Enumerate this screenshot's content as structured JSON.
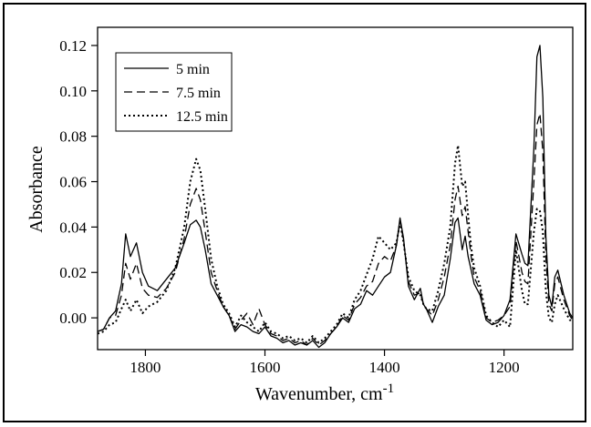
{
  "chart_data": {
    "type": "line",
    "xlabel": "Wavenumber, cm",
    "xlabel_superscript": "-1",
    "ylabel": "Absorbance",
    "xlim": [
      1880,
      1085
    ],
    "ylim": [
      -0.014,
      0.128
    ],
    "x_reversed": true,
    "grid": false,
    "legend_position": "top-left",
    "xticks": [
      1800,
      1600,
      1400,
      1200
    ],
    "xtick_labels": [
      "1800",
      "1600",
      "1400",
      "1200"
    ],
    "yticks": [
      0.0,
      0.02,
      0.04,
      0.06,
      0.08,
      0.1,
      0.12
    ],
    "ytick_labels": [
      "0.00",
      "0.02",
      "0.04",
      "0.06",
      "0.08",
      "0.10",
      "0.12"
    ],
    "series": [
      {
        "name": "5 min",
        "style": "solid",
        "x": [
          1880,
          1870,
          1860,
          1850,
          1840,
          1833,
          1825,
          1815,
          1805,
          1795,
          1780,
          1765,
          1750,
          1735,
          1725,
          1715,
          1708,
          1700,
          1690,
          1680,
          1670,
          1660,
          1650,
          1640,
          1630,
          1620,
          1610,
          1600,
          1590,
          1580,
          1570,
          1560,
          1550,
          1540,
          1530,
          1520,
          1510,
          1500,
          1490,
          1480,
          1470,
          1460,
          1450,
          1440,
          1430,
          1420,
          1410,
          1400,
          1390,
          1380,
          1374,
          1368,
          1360,
          1350,
          1340,
          1335,
          1330,
          1320,
          1310,
          1300,
          1290,
          1282,
          1277,
          1270,
          1265,
          1260,
          1255,
          1250,
          1240,
          1230,
          1220,
          1210,
          1200,
          1190,
          1180,
          1170,
          1165,
          1160,
          1150,
          1145,
          1140,
          1135,
          1130,
          1125,
          1120,
          1115,
          1110,
          1100,
          1090,
          1085
        ],
        "y": [
          -0.006,
          -0.005,
          0.0,
          0.003,
          0.015,
          0.037,
          0.027,
          0.033,
          0.02,
          0.014,
          0.012,
          0.017,
          0.022,
          0.033,
          0.041,
          0.043,
          0.04,
          0.03,
          0.015,
          0.01,
          0.005,
          0.001,
          -0.006,
          -0.003,
          -0.004,
          -0.006,
          -0.007,
          -0.004,
          -0.008,
          -0.009,
          -0.011,
          -0.01,
          -0.012,
          -0.011,
          -0.012,
          -0.01,
          -0.013,
          -0.011,
          -0.007,
          -0.004,
          0.0,
          -0.002,
          0.004,
          0.006,
          0.012,
          0.01,
          0.014,
          0.018,
          0.02,
          0.032,
          0.044,
          0.035,
          0.014,
          0.008,
          0.013,
          0.006,
          0.004,
          -0.002,
          0.005,
          0.01,
          0.026,
          0.042,
          0.044,
          0.03,
          0.036,
          0.027,
          0.021,
          0.015,
          0.01,
          -0.001,
          -0.003,
          -0.002,
          0.001,
          0.008,
          0.037,
          0.028,
          0.024,
          0.023,
          0.075,
          0.115,
          0.12,
          0.097,
          0.036,
          0.01,
          0.005,
          0.018,
          0.021,
          0.01,
          0.002,
          0.0
        ]
      },
      {
        "name": "7.5 min",
        "style": "dashed",
        "x": [
          1880,
          1870,
          1860,
          1850,
          1840,
          1833,
          1825,
          1815,
          1805,
          1795,
          1780,
          1765,
          1750,
          1735,
          1725,
          1715,
          1708,
          1700,
          1690,
          1680,
          1670,
          1660,
          1650,
          1640,
          1630,
          1620,
          1610,
          1600,
          1590,
          1580,
          1570,
          1560,
          1550,
          1540,
          1530,
          1520,
          1510,
          1500,
          1490,
          1480,
          1470,
          1460,
          1450,
          1440,
          1430,
          1420,
          1410,
          1400,
          1390,
          1380,
          1374,
          1368,
          1360,
          1350,
          1340,
          1335,
          1330,
          1320,
          1310,
          1300,
          1290,
          1282,
          1277,
          1270,
          1265,
          1260,
          1255,
          1250,
          1240,
          1230,
          1220,
          1210,
          1200,
          1190,
          1180,
          1170,
          1165,
          1160,
          1150,
          1145,
          1140,
          1135,
          1130,
          1125,
          1120,
          1115,
          1110,
          1100,
          1090,
          1085
        ],
        "y": [
          -0.006,
          -0.005,
          0.0,
          0.001,
          0.01,
          0.024,
          0.017,
          0.024,
          0.013,
          0.01,
          0.009,
          0.013,
          0.02,
          0.035,
          0.05,
          0.057,
          0.052,
          0.038,
          0.02,
          0.012,
          0.005,
          0.001,
          -0.005,
          -0.001,
          0.002,
          -0.003,
          0.004,
          -0.003,
          -0.007,
          -0.008,
          -0.01,
          -0.009,
          -0.011,
          -0.01,
          -0.012,
          -0.009,
          -0.012,
          -0.01,
          -0.007,
          -0.004,
          0.001,
          -0.001,
          0.006,
          0.009,
          0.014,
          0.016,
          0.024,
          0.027,
          0.025,
          0.032,
          0.043,
          0.034,
          0.016,
          0.01,
          0.011,
          0.006,
          0.004,
          0.001,
          0.008,
          0.018,
          0.032,
          0.052,
          0.058,
          0.045,
          0.049,
          0.038,
          0.027,
          0.018,
          0.012,
          0.0,
          -0.002,
          -0.001,
          0.001,
          0.005,
          0.034,
          0.02,
          0.016,
          0.015,
          0.06,
          0.085,
          0.09,
          0.073,
          0.027,
          0.006,
          0.003,
          0.015,
          0.018,
          0.008,
          0.001,
          -0.001
        ]
      },
      {
        "name": "12.5 min",
        "style": "dotted",
        "x": [
          1880,
          1870,
          1860,
          1850,
          1840,
          1833,
          1825,
          1815,
          1805,
          1795,
          1780,
          1765,
          1750,
          1735,
          1725,
          1715,
          1708,
          1700,
          1690,
          1680,
          1670,
          1660,
          1650,
          1640,
          1630,
          1620,
          1610,
          1600,
          1590,
          1580,
          1570,
          1560,
          1550,
          1540,
          1530,
          1520,
          1510,
          1500,
          1490,
          1480,
          1470,
          1460,
          1450,
          1440,
          1430,
          1420,
          1410,
          1400,
          1390,
          1380,
          1374,
          1368,
          1360,
          1350,
          1340,
          1335,
          1330,
          1320,
          1310,
          1300,
          1290,
          1282,
          1277,
          1270,
          1265,
          1260,
          1255,
          1250,
          1240,
          1230,
          1220,
          1210,
          1200,
          1190,
          1180,
          1170,
          1165,
          1160,
          1150,
          1145,
          1140,
          1135,
          1130,
          1125,
          1120,
          1115,
          1110,
          1100,
          1090,
          1085
        ],
        "y": [
          -0.007,
          -0.006,
          -0.003,
          -0.002,
          0.004,
          0.008,
          0.003,
          0.008,
          0.002,
          0.005,
          0.007,
          0.012,
          0.022,
          0.04,
          0.06,
          0.07,
          0.065,
          0.048,
          0.026,
          0.014,
          0.006,
          0.002,
          -0.004,
          0.001,
          -0.002,
          -0.004,
          -0.006,
          -0.002,
          -0.006,
          -0.007,
          -0.009,
          -0.008,
          -0.01,
          -0.009,
          -0.011,
          -0.008,
          -0.011,
          -0.009,
          -0.006,
          -0.003,
          0.002,
          0.0,
          0.008,
          0.012,
          0.019,
          0.026,
          0.036,
          0.033,
          0.03,
          0.033,
          0.042,
          0.033,
          0.018,
          0.012,
          0.01,
          0.006,
          0.004,
          0.003,
          0.012,
          0.024,
          0.04,
          0.068,
          0.076,
          0.058,
          0.06,
          0.045,
          0.031,
          0.022,
          0.014,
          0.001,
          -0.002,
          -0.004,
          -0.001,
          -0.004,
          0.03,
          0.012,
          0.006,
          0.006,
          0.038,
          0.048,
          0.047,
          0.038,
          0.012,
          0.0,
          -0.002,
          0.006,
          0.01,
          0.004,
          -0.001,
          -0.001
        ]
      }
    ]
  }
}
